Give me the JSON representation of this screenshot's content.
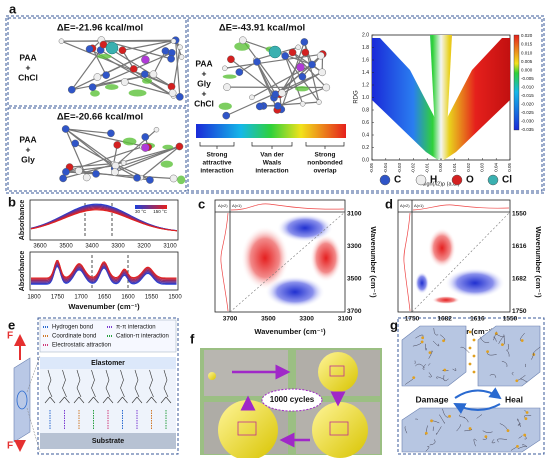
{
  "panel_a": {
    "label": "a",
    "dE1": "ΔE=-21.96 kcal/mol",
    "sys1": [
      "PAA",
      "+",
      "ChCl"
    ],
    "dE2": "ΔE=-20.66 kcal/mol",
    "sys2": [
      "PAA",
      "+",
      "Gly"
    ],
    "dE3": "ΔE=-43.91 kcal/mol",
    "sys3": [
      "PAA",
      "+",
      "Gly",
      "+",
      "ChCl"
    ],
    "scale": [
      [
        "Strong",
        "attractive",
        "interaction"
      ],
      [
        "Van der",
        "Waals",
        "interaction"
      ],
      [
        "Strong",
        "nonbonded",
        "overlap"
      ]
    ],
    "rdg": {
      "ylabel": "RDG",
      "xlabel": "sign(λ2)ρ (a.u.)",
      "yticks": [
        "0.0",
        "0.2",
        "0.4",
        "0.6",
        "0.8",
        "1.0",
        "1.2",
        "1.4",
        "1.6",
        "1.8",
        "2.0"
      ],
      "xticks": [
        "-0.05",
        "-0.04",
        "-0.03",
        "-0.02",
        "-0.01",
        "0.00",
        "0.01",
        "0.02",
        "0.03",
        "0.04",
        "0.05"
      ],
      "cbar": [
        "0.020",
        "0.015",
        "0.010",
        "0.005",
        "0.000",
        "-0.005",
        "-0.010",
        "-0.015",
        "-0.020",
        "-0.025",
        "-0.030",
        "-0.035"
      ]
    },
    "atoms": [
      "C",
      "H",
      "O",
      "Cl"
    ]
  },
  "panel_b": {
    "label": "b",
    "ylabel": "Absorbance",
    "ylabel2": "Absorbance",
    "temp_low": "30 °C",
    "temp_high": "150 °C",
    "xticks_top": [
      "3600",
      "3500",
      "3400",
      "3300",
      "3200",
      "3100"
    ],
    "xticks_bottom": [
      "1800",
      "1750",
      "1700",
      "1650",
      "1600",
      "1550",
      "1500"
    ],
    "xlabel": "Wavenumber (cm⁻¹)"
  },
  "panel_c": {
    "label": "c",
    "top_label": "A(ν1)",
    "left_label": "A(ν2)",
    "xticks": [
      "3700",
      "3500",
      "3300",
      "3100"
    ],
    "yticks": [
      "3100",
      "3300",
      "3500",
      "3700"
    ],
    "xlabel": "Wavenumber (cm⁻¹)",
    "ylabel": "Wavenumber (cm⁻¹)"
  },
  "panel_d": {
    "label": "d",
    "top_label": "A(ν1)",
    "left_label": "A(ν2)",
    "xticks": [
      "1750",
      "1682",
      "1616",
      "1550"
    ],
    "yticks": [
      "1550",
      "1616",
      "1682",
      "1750"
    ],
    "xlabel": "Wavenumber (cm⁻¹)",
    "ylabel": "Wavenumber (cm⁻¹)"
  },
  "panel_e": {
    "label": "e",
    "legend": [
      "Hydrogen bond",
      "π-π interaction",
      "Coordinate bond",
      "Cation-π interaction",
      "Electrostatic attraction"
    ],
    "elastomer": "Elastomer",
    "substrate": "Substrate",
    "force_top": "F",
    "force_bottom": "F"
  },
  "panel_f": {
    "label": "f",
    "cycles": "1000 cycles"
  },
  "panel_g": {
    "label": "g",
    "damage": "Damage",
    "heal": "Heal"
  }
}
